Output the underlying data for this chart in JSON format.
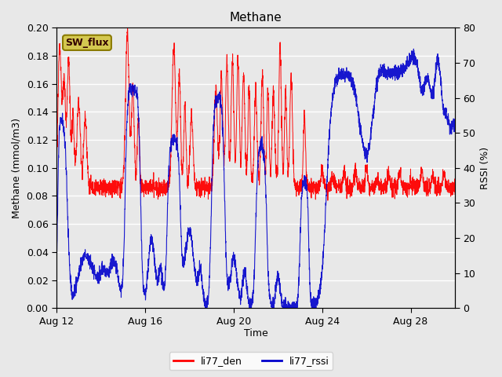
{
  "title": "Methane",
  "ylabel_left": "Methane (mmol/m3)",
  "ylabel_right": "RSSI (%)",
  "xlabel": "Time",
  "ylim_left": [
    0.0,
    0.2
  ],
  "ylim_right": [
    0,
    80
  ],
  "yticks_left": [
    0.0,
    0.02,
    0.04,
    0.06,
    0.08,
    0.1,
    0.12,
    0.14,
    0.16,
    0.18,
    0.2
  ],
  "yticks_right": [
    0,
    10,
    20,
    30,
    40,
    50,
    60,
    70,
    80
  ],
  "xtick_labels": [
    "Aug 12",
    "Aug 16",
    "Aug 20",
    "Aug 24",
    "Aug 28"
  ],
  "xtick_positions": [
    0,
    4,
    8,
    12,
    16
  ],
  "legend_labels": [
    "li77_den",
    "li77_rssi"
  ],
  "legend_colors": [
    "#ff0000",
    "#0000cc"
  ],
  "watermark_text": "SW_flux",
  "watermark_bg": "#d4c850",
  "watermark_border": "#8a7a00",
  "bg_color": "#e8e8e8",
  "line_color_den": "#ff0000",
  "line_color_rssi": "#0000cc",
  "grid_color": "#ffffff",
  "title_fontsize": 11,
  "axis_label_fontsize": 9,
  "tick_fontsize": 9,
  "fig_bg": "#e8e8e8"
}
